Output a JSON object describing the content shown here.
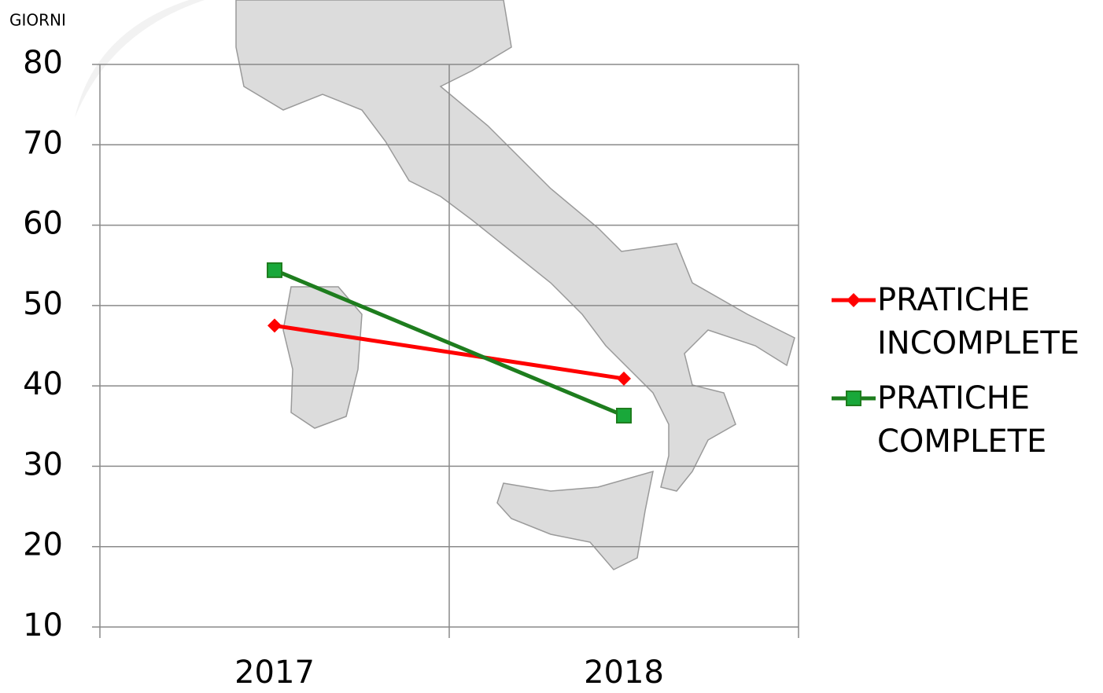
{
  "chart_data": {
    "type": "line",
    "y_label": "GIORNI",
    "categories": [
      "2017",
      "2018"
    ],
    "series": [
      {
        "name": "PRATICHE INCOMPLETE",
        "color": "#ff0000",
        "marker": "diamond",
        "values": [
          47.5,
          40.9
        ]
      },
      {
        "name": "PRATICHE COMPLETE",
        "color": "#1e7d1e",
        "marker": "square",
        "values": [
          54.4,
          36.3
        ]
      }
    ],
    "ylim": [
      10,
      80
    ],
    "yticks": [
      10,
      20,
      30,
      40,
      50,
      60,
      70,
      80
    ],
    "grid": true,
    "legend": "right"
  }
}
